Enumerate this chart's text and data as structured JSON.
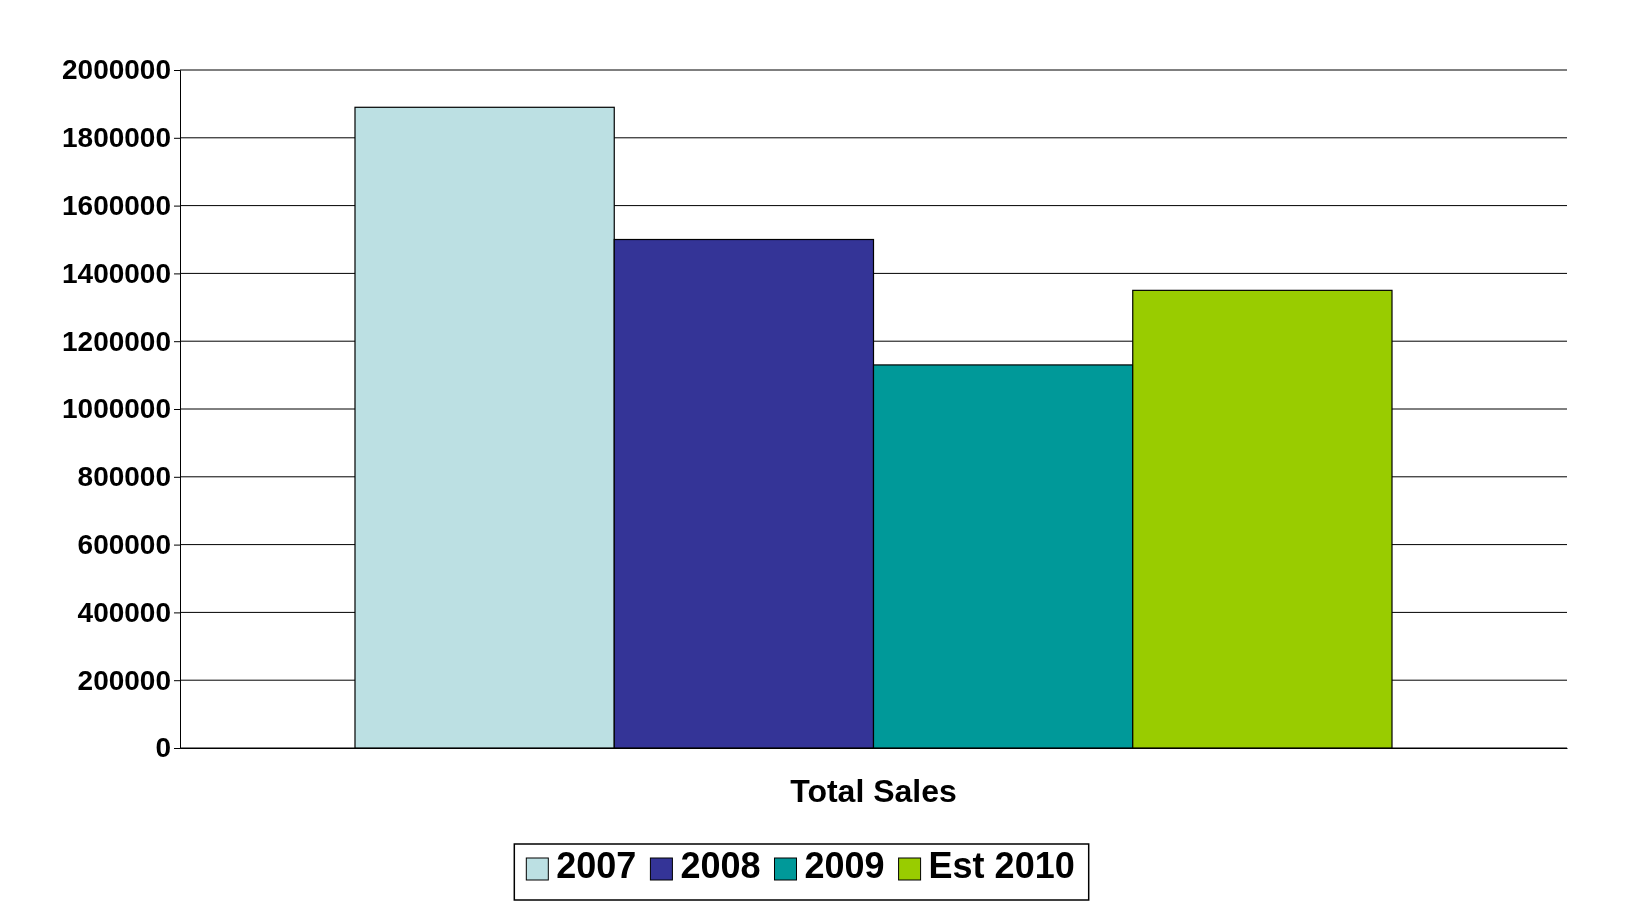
{
  "chart_data": {
    "type": "bar",
    "categories": [
      "Total Sales"
    ],
    "series": [
      {
        "name": "2007",
        "color": "#bce0e3",
        "values": [
          1890000
        ]
      },
      {
        "name": "2008",
        "color": "#343497",
        "values": [
          1500000
        ]
      },
      {
        "name": "2009",
        "color": "#009999",
        "values": [
          1130000
        ]
      },
      {
        "name": "Est 2010",
        "color": "#99cc00",
        "values": [
          1350000
        ]
      }
    ],
    "ylim": [
      0,
      2000000
    ],
    "yticks": [
      0,
      200000,
      400000,
      600000,
      800000,
      1000000,
      1200000,
      1400000,
      1600000,
      1800000,
      2000000
    ],
    "grid": "y",
    "legend": "bottom"
  }
}
